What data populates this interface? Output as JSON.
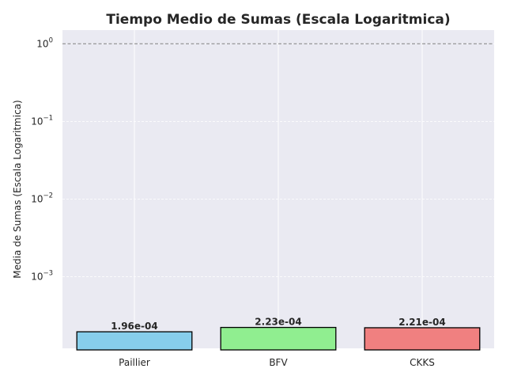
{
  "chart_data": {
    "type": "bar",
    "title": "Tiempo Medio de Sumas (Escala Logaritmica)",
    "xlabel": "",
    "ylabel": "Media de Sumas (Escala Logaritmica)",
    "yscale": "log",
    "ylim": [
      0.00012,
      1.5
    ],
    "yticks": [
      {
        "value": 0.001,
        "base": "10",
        "exp": "−3"
      },
      {
        "value": 0.01,
        "base": "10",
        "exp": "−2"
      },
      {
        "value": 0.1,
        "base": "10",
        "exp": "−1"
      },
      {
        "value": 1,
        "base": "10",
        "exp": "0"
      }
    ],
    "categories": [
      "Paillier",
      "BFV",
      "CKKS"
    ],
    "values": [
      0.000196,
      0.000223,
      0.000221
    ],
    "value_labels": [
      "1.96e-04",
      "2.23e-04",
      "2.21e-04"
    ],
    "colors": [
      "#87ceeb",
      "#90ee90",
      "#f08080"
    ],
    "reference_line": 1,
    "grid": true,
    "background": "#eaeaf2"
  }
}
